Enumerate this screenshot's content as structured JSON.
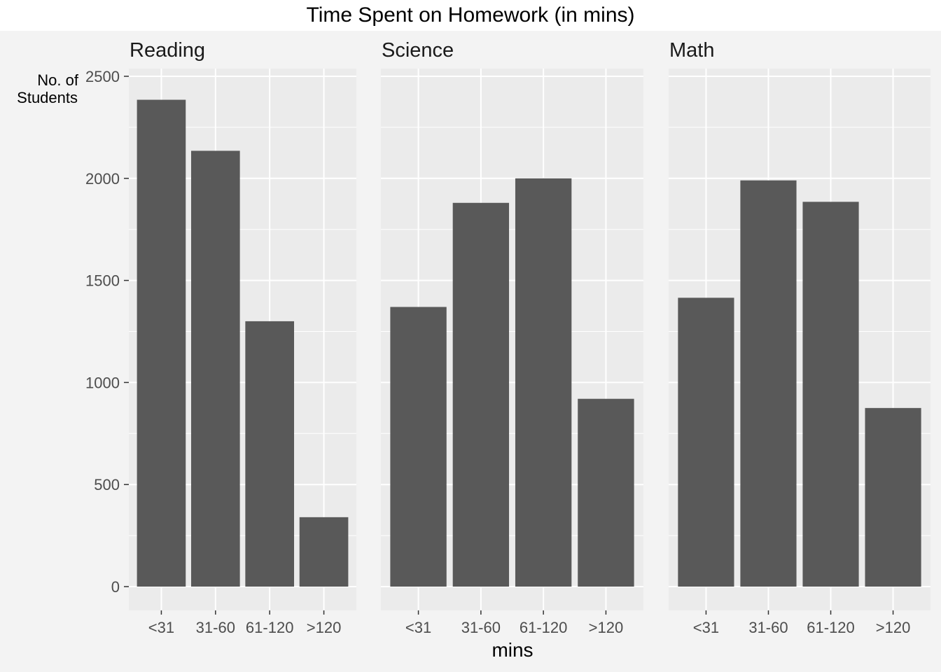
{
  "chart_data": {
    "type": "bar",
    "title": "Time Spent on Homework (in mins)",
    "xlabel": "mins",
    "ylabel": "No. of Students",
    "ylabel_lines": [
      "No. of",
      "Students"
    ],
    "ylim": [
      0,
      2500
    ],
    "yticks": [
      0,
      500,
      1000,
      1500,
      2000,
      2500
    ],
    "grid": true,
    "categories": [
      "<31",
      "31-60",
      "61-120",
      ">120"
    ],
    "colors": {
      "bar": "#595959",
      "panel": "#ebebeb",
      "grid": "#ffffff",
      "figure_background": "#f3f3f3",
      "tick_text": "#4d4d4d"
    },
    "panels": [
      {
        "name": "Reading",
        "values": [
          2385,
          2135,
          1300,
          340
        ]
      },
      {
        "name": "Science",
        "values": [
          1370,
          1880,
          2000,
          920
        ]
      },
      {
        "name": "Math",
        "values": [
          1415,
          1990,
          1885,
          875
        ]
      }
    ]
  }
}
